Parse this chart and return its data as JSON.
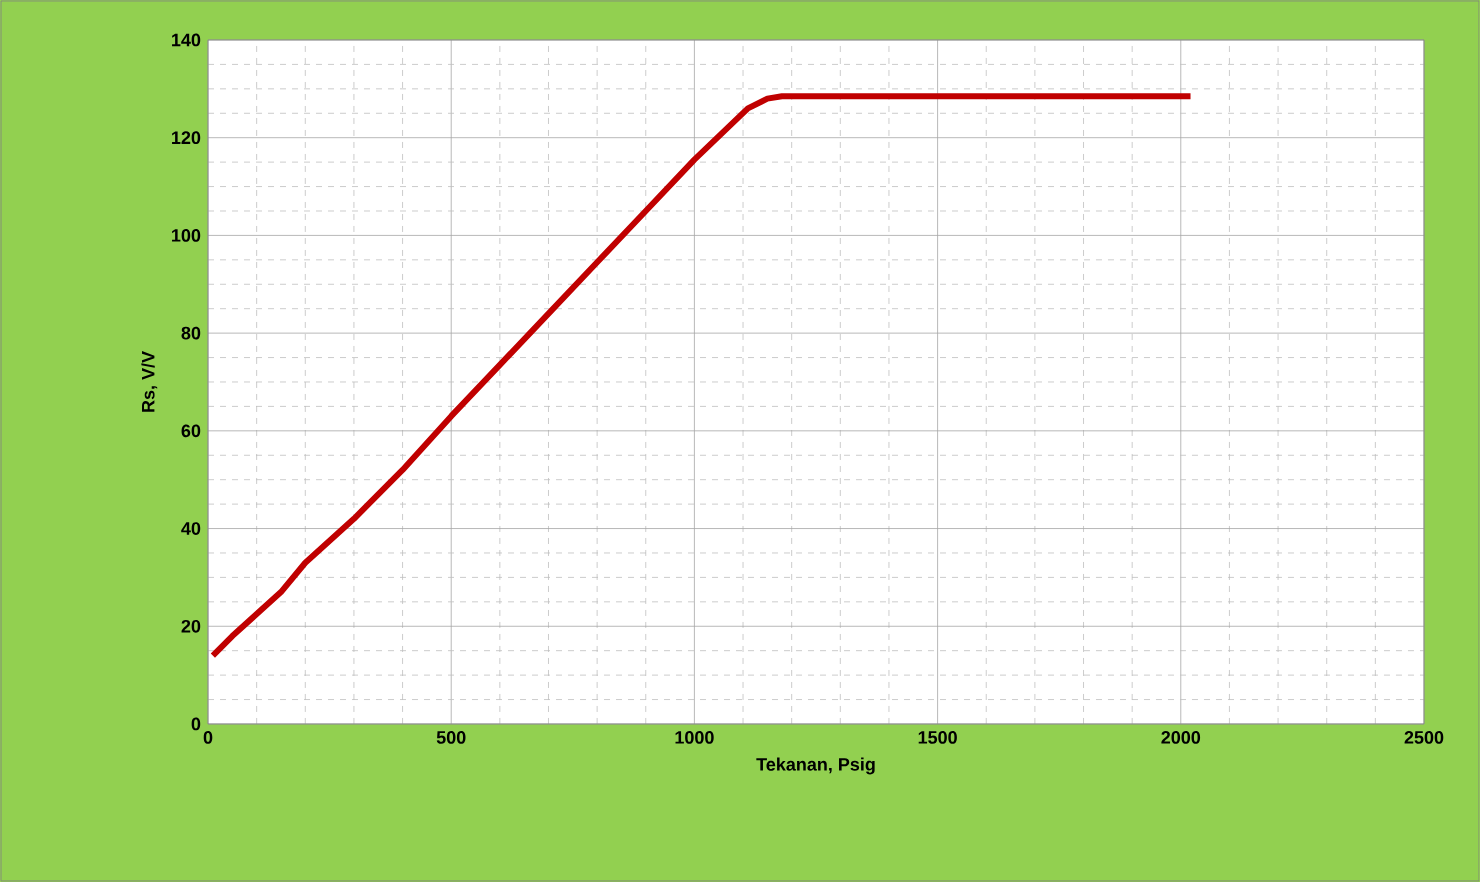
{
  "chart_data": {
    "type": "line",
    "xlabel": "Tekanan,  Psig",
    "ylabel": "Rs, V/V",
    "x": [
      10,
      50,
      100,
      150,
      200,
      300,
      400,
      500,
      600,
      700,
      800,
      900,
      1000,
      1110,
      1150,
      1180,
      1600,
      2020
    ],
    "series": [
      {
        "color": "#c00000",
        "values": [
          14,
          18,
          22.5,
          27,
          33,
          42,
          52,
          63,
          73.5,
          84,
          94.5,
          105,
          115.5,
          126,
          128,
          128.5,
          128.5,
          128.5
        ]
      }
    ],
    "xlim": [
      0,
      2500
    ],
    "xticks": [
      0,
      500,
      1000,
      1500,
      2000,
      2500
    ],
    "ylim": [
      0,
      140
    ],
    "yticks": [
      0,
      20,
      40,
      60,
      80,
      100,
      120,
      140
    ],
    "grid": true,
    "marker": "none",
    "line_style": "solid"
  }
}
